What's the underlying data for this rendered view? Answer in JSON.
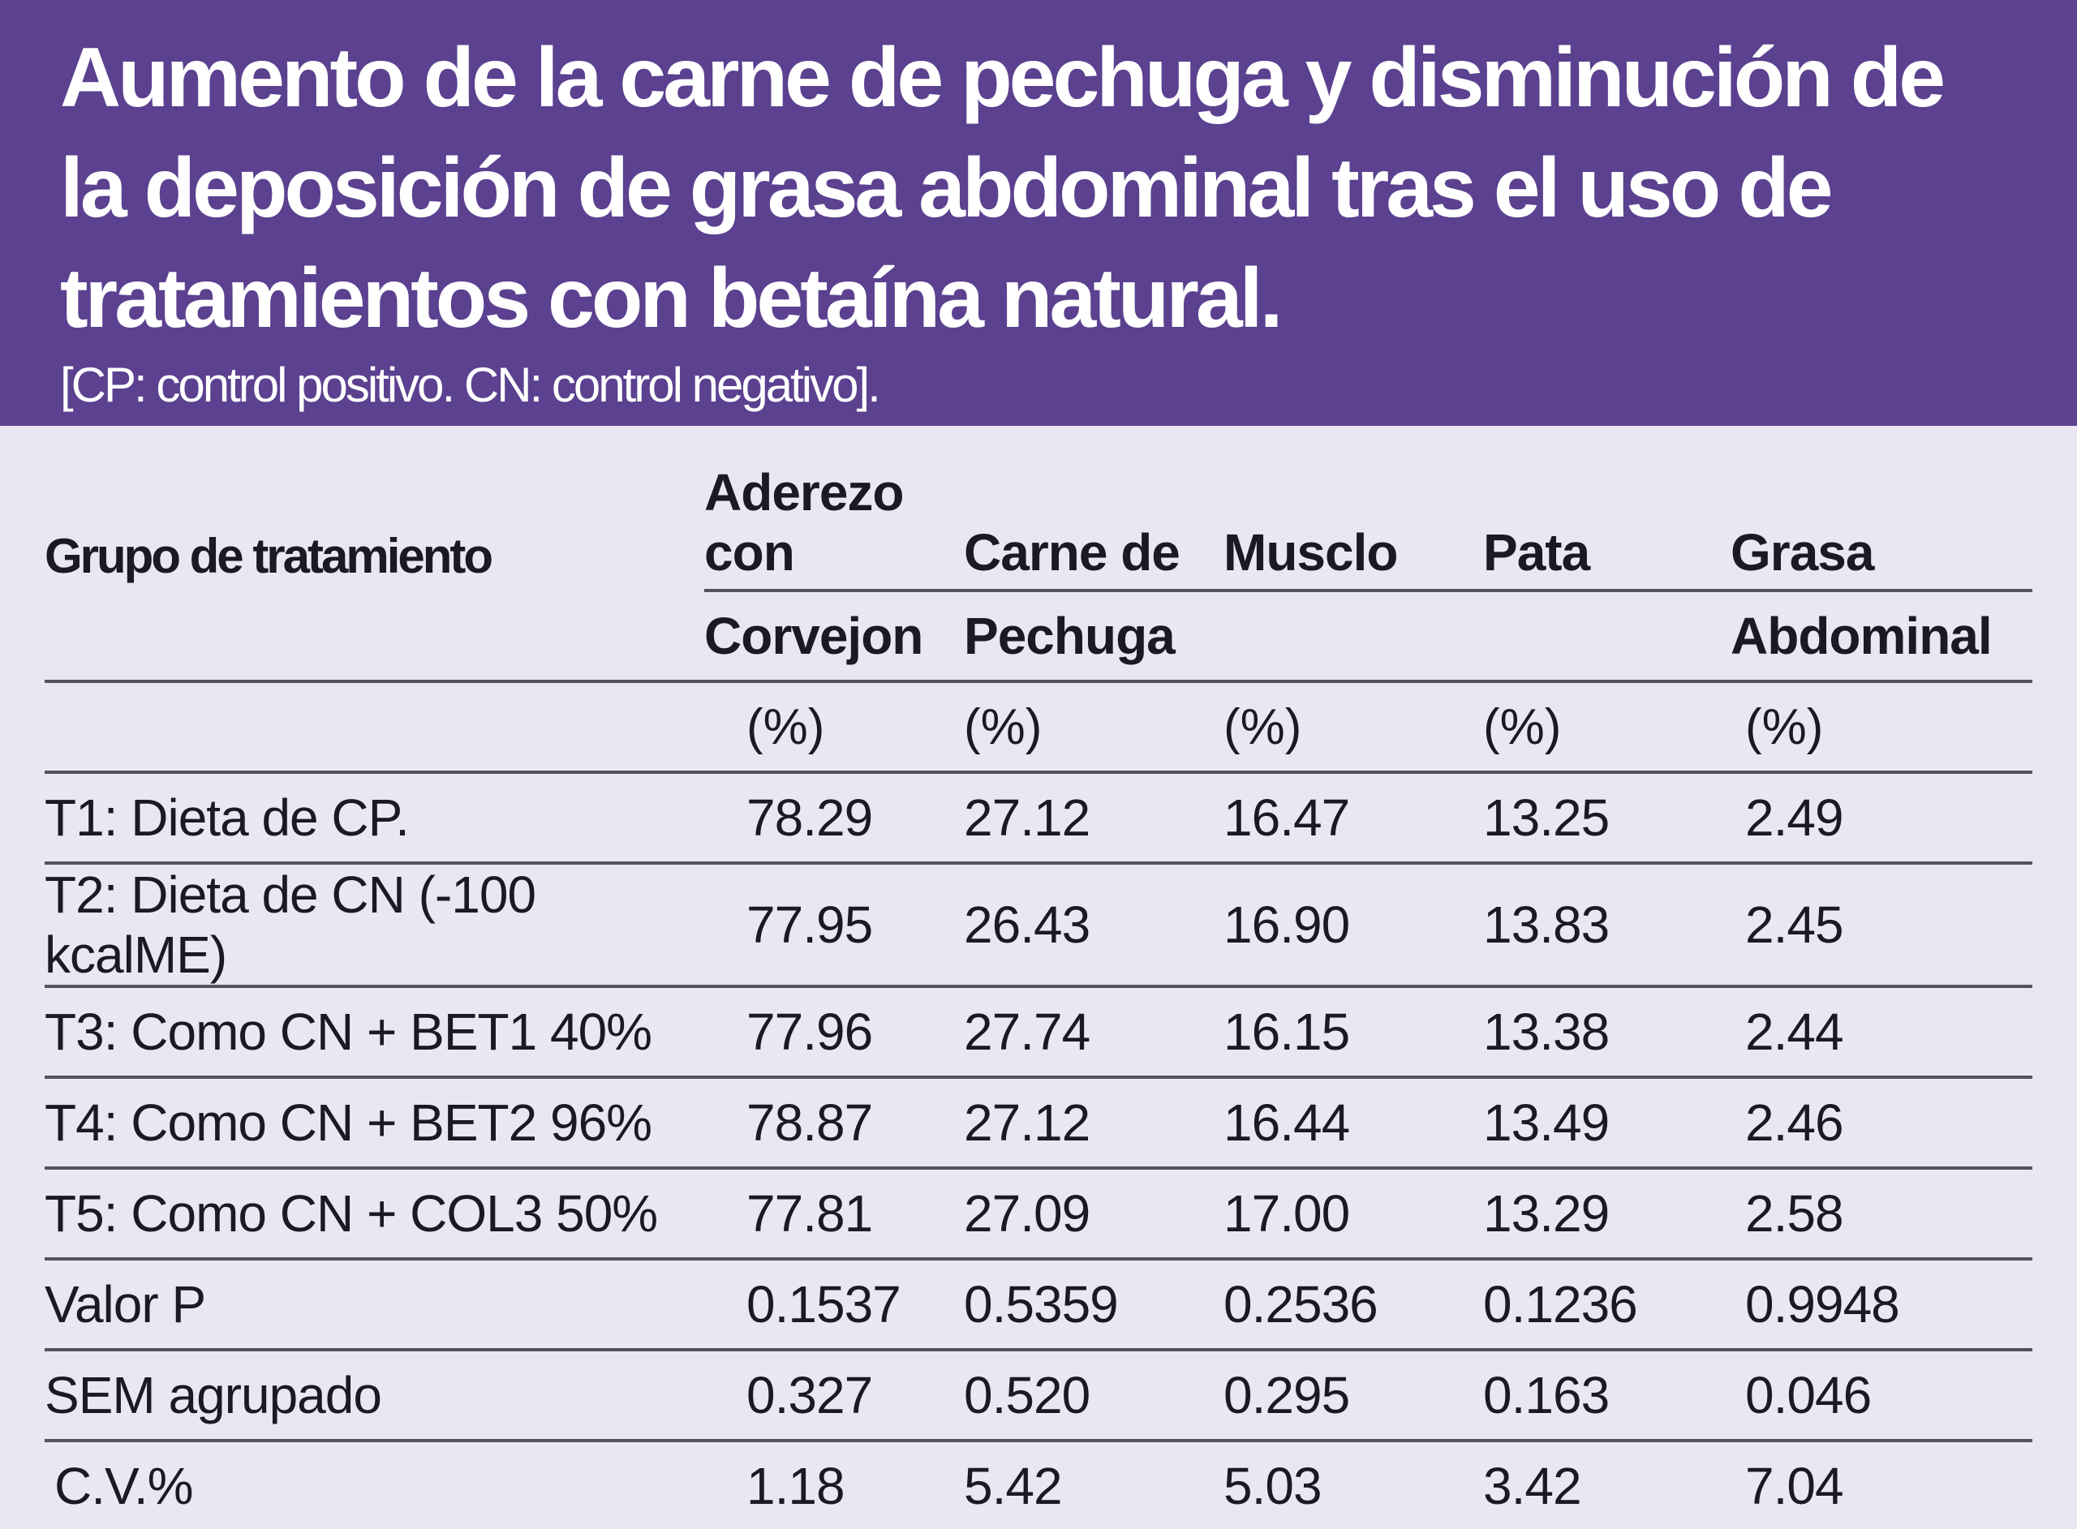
{
  "header": {
    "title": "Aumento de la carne de pechuga y disminución  de  la deposición de grasa abdominal tras el uso de tratamientos con betaína natural.",
    "subtitle": "[CP: control positivo. CN: control negativo]."
  },
  "colors": {
    "banner": "#5b418f",
    "background": "#ebe7f2",
    "rule": "#555062",
    "text": "#1c1826"
  },
  "chart_data": {
    "type": "table",
    "title": "Aumento de la carne de pechuga y disminución  de  la deposición de grasa abdominal tras el uso de tratamientos con betaína natural.",
    "subtitle": "[CP: control positivo. CN: control negativo].",
    "header": {
      "group": "Grupo de tratamiento",
      "columns": [
        {
          "line1": "Aderezo con",
          "line2": "Corvejon",
          "unit": "(%)"
        },
        {
          "line1": "Carne de",
          "line2": "Pechuga",
          "unit": "(%)"
        },
        {
          "line1": "Musclo",
          "line2": "",
          "unit": "(%)"
        },
        {
          "line1": "Pata",
          "line2": "",
          "unit": "(%)"
        },
        {
          "line1": "Grasa",
          "line2": "Abdominal",
          "unit": "(%)"
        }
      ]
    },
    "rows": [
      {
        "label": "T1: Dieta de CP.",
        "values": [
          "78.29",
          "27.12",
          "16.47",
          "13.25",
          "2.49"
        ]
      },
      {
        "label": "T2: Dieta de CN (-100 kcalME)",
        "values": [
          "77.95",
          "26.43",
          "16.90",
          "13.83",
          "2.45"
        ]
      },
      {
        "label": "T3: Como CN + BET1 40%",
        "values": [
          "77.96",
          "27.74",
          "16.15",
          "13.38",
          "2.44"
        ]
      },
      {
        "label": "T4: Como CN + BET2 96%",
        "values": [
          "78.87",
          "27.12",
          "16.44",
          "13.49",
          "2.46"
        ]
      },
      {
        "label": "T5: Como CN + COL3 50%",
        "values": [
          "77.81",
          "27.09",
          "17.00",
          "13.29",
          "2.58"
        ]
      },
      {
        "label": "Valor P",
        "values": [
          "0.1537",
          "0.5359",
          "0.2536",
          "0.1236",
          "0.9948"
        ]
      },
      {
        "label": "SEM agrupado",
        "values": [
          "0.327",
          "0.520",
          "0.295",
          "0.163",
          "0.046"
        ]
      },
      {
        "label": "C.V.%",
        "values": [
          "1.18",
          "5.42",
          "5.03",
          "3.42",
          "7.04"
        ]
      }
    ]
  }
}
